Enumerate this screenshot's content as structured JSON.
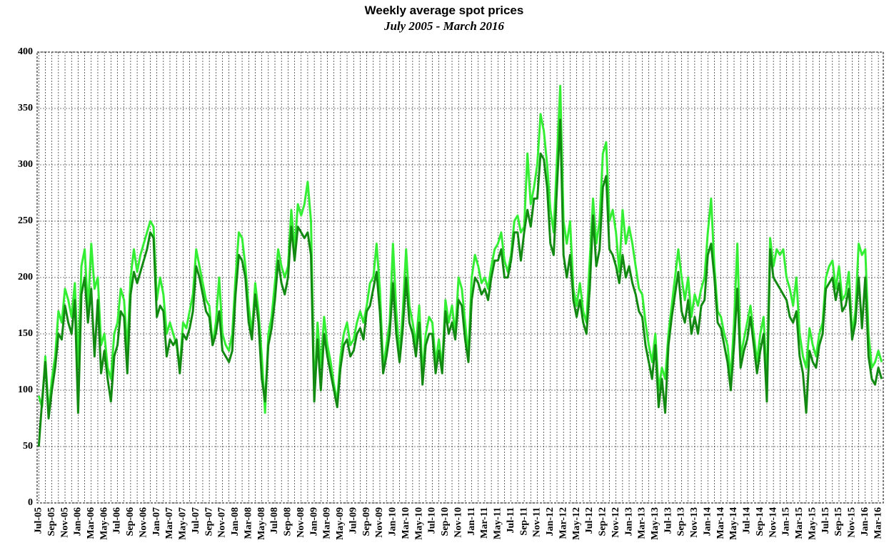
{
  "chart_data": {
    "type": "line",
    "title": "Weekly average spot prices",
    "subtitle": "July 2005 -  March 2016",
    "categories": [
      "Jul-05",
      null,
      null,
      null,
      "Sep-05",
      null,
      null,
      null,
      "Nov-05",
      null,
      null,
      null,
      "Jan-06",
      null,
      null,
      null,
      "Mar-06",
      null,
      null,
      null,
      "May-06",
      null,
      null,
      null,
      "Jul-06",
      null,
      null,
      null,
      "Sep-06",
      null,
      null,
      null,
      "Nov-06",
      null,
      null,
      null,
      "Jan-07",
      null,
      null,
      null,
      "Mar-07",
      null,
      null,
      null,
      "May-07",
      null,
      null,
      null,
      "Jul-07",
      null,
      null,
      null,
      "Sep-07",
      null,
      null,
      null,
      "Nov-07",
      null,
      null,
      null,
      "Jan-08",
      null,
      null,
      null,
      "Mar-08",
      null,
      null,
      null,
      "May-08",
      null,
      null,
      null,
      "Jul-08",
      null,
      null,
      null,
      "Sep-08",
      null,
      null,
      null,
      "Nov-08",
      null,
      null,
      null,
      "Jan-09",
      null,
      null,
      null,
      "Mar-09",
      null,
      null,
      null,
      "May-09",
      null,
      null,
      null,
      "Jul-09",
      null,
      null,
      null,
      "Sep-09",
      null,
      null,
      null,
      "Nov-09",
      null,
      null,
      null,
      "Jan-10",
      null,
      null,
      null,
      "Mar-10",
      null,
      null,
      null,
      "May-10",
      null,
      null,
      null,
      "Jul-10",
      null,
      null,
      null,
      "Sep-10",
      null,
      null,
      null,
      "Nov-10",
      null,
      null,
      null,
      "Jan-11",
      null,
      null,
      null,
      "Mar-11",
      null,
      null,
      null,
      "May-11",
      null,
      null,
      null,
      "Jul-11",
      null,
      null,
      null,
      "Sep-11",
      null,
      null,
      null,
      "Nov-11",
      null,
      null,
      null,
      "Jan-12",
      null,
      null,
      null,
      "Mar-12",
      null,
      null,
      null,
      "May-12",
      null,
      null,
      null,
      "Jul-12",
      null,
      null,
      null,
      "Sep-12",
      null,
      null,
      null,
      "Nov-12",
      null,
      null,
      null,
      "Jan-13",
      null,
      null,
      null,
      "Mar-13",
      null,
      null,
      null,
      "May-13",
      null,
      null,
      null,
      "Jul-13",
      null,
      null,
      null,
      "Sep-13",
      null,
      null,
      null,
      "Nov-13",
      null,
      null,
      null,
      "Jan-14",
      null,
      null,
      null,
      "Mar-14",
      null,
      null,
      null,
      "May-14",
      null,
      null,
      null,
      "Jul-14",
      null,
      null,
      null,
      "Sep-14",
      null,
      null,
      null,
      "Nov-14",
      null,
      null,
      null,
      "Jan-15",
      null,
      null,
      null,
      "Mar-15",
      null,
      null,
      null,
      "May-15",
      null,
      null,
      null,
      "Jul-15",
      null,
      null,
      null,
      "Sep-15",
      null,
      null,
      null,
      "Nov-15",
      null,
      null,
      null,
      "Jan-16",
      null,
      null,
      null,
      "Mar-16",
      null
    ],
    "series": [
      {
        "color": "#33ee33",
        "values": [
          95,
          85,
          130,
          80,
          110,
          130,
          170,
          160,
          190,
          180,
          165,
          195,
          120,
          210,
          225,
          170,
          230,
          190,
          200,
          140,
          150,
          120,
          110,
          150,
          160,
          190,
          180,
          135,
          200,
          225,
          205,
          220,
          230,
          240,
          250,
          245,
          180,
          200,
          185,
          150,
          160,
          150,
          140,
          120,
          160,
          155,
          170,
          185,
          225,
          210,
          195,
          180,
          175,
          140,
          160,
          200,
          150,
          140,
          135,
          150,
          200,
          240,
          235,
          210,
          175,
          150,
          195,
          170,
          130,
          80,
          150,
          165,
          195,
          225,
          210,
          200,
          210,
          260,
          225,
          265,
          255,
          265,
          285,
          250,
          95,
          160,
          120,
          165,
          140,
          125,
          105,
          90,
          130,
          150,
          160,
          140,
          145,
          160,
          170,
          160,
          175,
          195,
          200,
          230,
          190,
          120,
          140,
          160,
          230,
          170,
          130,
          170,
          225,
          175,
          160,
          140,
          175,
          115,
          150,
          165,
          160,
          125,
          145,
          120,
          180,
          160,
          175,
          150,
          200,
          190,
          160,
          130,
          200,
          220,
          210,
          195,
          200,
          190,
          210,
          225,
          230,
          240,
          215,
          205,
          220,
          250,
          255,
          240,
          245,
          310,
          265,
          280,
          300,
          345,
          330,
          300,
          260,
          240,
          305,
          370,
          250,
          230,
          250,
          190,
          175,
          195,
          170,
          160,
          215,
          270,
          230,
          250,
          310,
          320,
          250,
          260,
          240,
          205,
          260,
          230,
          245,
          230,
          210,
          190,
          185,
          160,
          140,
          125,
          150,
          100,
          120,
          110,
          150,
          175,
          200,
          225,
          200,
          180,
          200,
          165,
          185,
          175,
          190,
          200,
          240,
          270,
          210,
          170,
          165,
          150,
          140,
          110,
          160,
          230,
          130,
          145,
          160,
          175,
          150,
          125,
          150,
          165,
          105,
          235,
          210,
          225,
          220,
          225,
          200,
          190,
          175,
          200,
          150,
          130,
          120,
          155,
          140,
          130,
          150,
          160,
          200,
          210,
          215,
          190,
          210,
          180,
          185,
          205,
          150,
          170,
          230,
          220,
          225,
          150,
          120,
          125,
          135,
          125
        ]
      },
      {
        "color": "#128a12",
        "values": [
          50,
          90,
          125,
          75,
          100,
          120,
          150,
          145,
          175,
          160,
          150,
          180,
          80,
          185,
          200,
          160,
          190,
          130,
          180,
          115,
          135,
          110,
          90,
          130,
          140,
          170,
          165,
          115,
          185,
          205,
          195,
          205,
          215,
          225,
          240,
          235,
          165,
          175,
          170,
          130,
          145,
          140,
          145,
          115,
          150,
          145,
          155,
          170,
          210,
          200,
          185,
          170,
          165,
          140,
          150,
          170,
          135,
          130,
          125,
          135,
          185,
          220,
          215,
          200,
          160,
          145,
          185,
          160,
          110,
          90,
          140,
          155,
          180,
          215,
          195,
          185,
          200,
          245,
          215,
          245,
          240,
          235,
          240,
          220,
          90,
          145,
          100,
          150,
          130,
          115,
          100,
          85,
          120,
          140,
          145,
          130,
          135,
          150,
          155,
          145,
          170,
          175,
          190,
          205,
          170,
          115,
          130,
          150,
          195,
          150,
          125,
          155,
          200,
          160,
          150,
          130,
          160,
          105,
          140,
          150,
          150,
          115,
          135,
          115,
          170,
          150,
          160,
          145,
          180,
          175,
          145,
          125,
          180,
          200,
          195,
          185,
          190,
          180,
          200,
          215,
          215,
          225,
          200,
          200,
          215,
          240,
          240,
          215,
          240,
          260,
          245,
          270,
          270,
          310,
          305,
          280,
          230,
          220,
          280,
          340,
          220,
          200,
          220,
          180,
          165,
          180,
          160,
          150,
          190,
          255,
          210,
          225,
          280,
          290,
          225,
          220,
          210,
          195,
          220,
          200,
          210,
          195,
          185,
          170,
          165,
          140,
          125,
          110,
          140,
          85,
          110,
          80,
          140,
          165,
          185,
          205,
          170,
          160,
          180,
          150,
          165,
          150,
          175,
          180,
          220,
          230,
          200,
          160,
          155,
          140,
          125,
          100,
          140,
          190,
          120,
          135,
          145,
          165,
          140,
          115,
          135,
          150,
          90,
          225,
          200,
          195,
          190,
          185,
          180,
          165,
          160,
          170,
          130,
          115,
          80,
          135,
          125,
          120,
          140,
          150,
          190,
          195,
          200,
          180,
          195,
          170,
          175,
          190,
          145,
          160,
          200,
          155,
          200,
          130,
          110,
          105,
          120,
          110
        ]
      }
    ],
    "ylim": [
      0,
      400
    ],
    "yticks": [
      0,
      50,
      100,
      150,
      200,
      250,
      300,
      350,
      400
    ],
    "grid": true
  }
}
